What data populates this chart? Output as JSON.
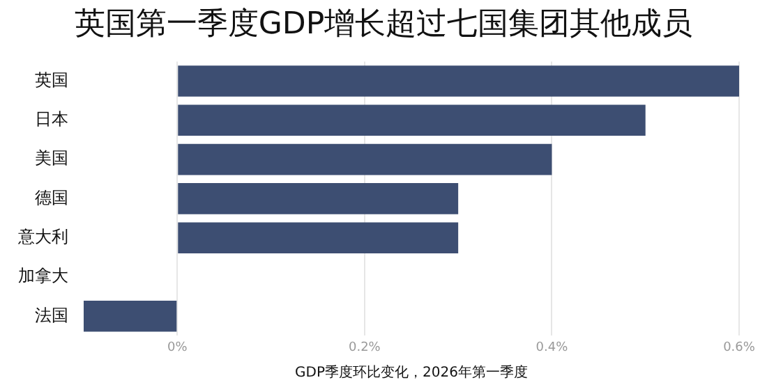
{
  "chart_data": {
    "type": "bar",
    "orientation": "horizontal",
    "title": "英国第一季度GDP增长超过七国集团其他成员",
    "xlabel": "GDP季度环比变化，2026年第一季度",
    "categories": [
      "英国",
      "日本",
      "美国",
      "德国",
      "意大利",
      "加拿大",
      "法国"
    ],
    "values": [
      0.6,
      0.5,
      0.4,
      0.3,
      0.3,
      0,
      -0.1
    ],
    "color": "#3d4e72",
    "xlim": [
      -0.1,
      0.6
    ],
    "xticks": [
      {
        "value": 0,
        "label": "0%"
      },
      {
        "value": 0.2,
        "label": "0.2%"
      },
      {
        "value": 0.4,
        "label": "0.4%"
      },
      {
        "value": 0.6,
        "label": "0.6%"
      }
    ],
    "grid": "x",
    "legend": false
  }
}
